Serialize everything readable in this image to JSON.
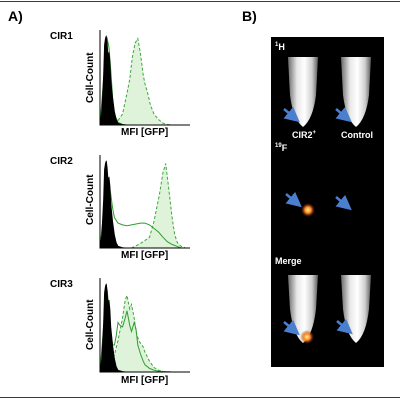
{
  "panel_a_label": "A)",
  "panel_b_label": "B)",
  "chart_data": [
    {
      "type": "area",
      "title": "CIR1",
      "xlabel": "MFI [GFP]",
      "ylabel": "Cell-Count",
      "series": [
        {
          "style": "filled-black",
          "x": [
            0,
            0.02,
            0.04,
            0.05,
            0.06,
            0.07,
            0.08,
            0.09,
            0.1,
            0.11,
            0.12,
            0.14,
            0.16,
            0.18,
            0.2,
            0.25,
            0.3
          ],
          "y": [
            0,
            0.15,
            0.55,
            0.88,
            0.95,
            0.98,
            0.9,
            0.75,
            0.8,
            0.7,
            0.5,
            0.3,
            0.15,
            0.06,
            0.02,
            0.005,
            0
          ]
        },
        {
          "style": "solid-green",
          "x": [
            0,
            0.04,
            0.06,
            0.08,
            0.1,
            0.12,
            0.14,
            0.16,
            0.2,
            0.25,
            0.3
          ],
          "y": [
            0,
            0.5,
            0.9,
            0.95,
            0.85,
            0.6,
            0.3,
            0.12,
            0.03,
            0.005,
            0
          ]
        },
        {
          "style": "dashed-green-filled",
          "x": [
            0.1,
            0.15,
            0.2,
            0.25,
            0.3,
            0.33,
            0.36,
            0.39,
            0.42,
            0.45,
            0.48,
            0.5,
            0.53,
            0.56,
            0.6,
            0.65,
            0.7,
            0.75,
            0.8
          ],
          "y": [
            0,
            0.03,
            0.05,
            0.12,
            0.35,
            0.5,
            0.75,
            0.9,
            0.95,
            0.78,
            0.55,
            0.45,
            0.35,
            0.22,
            0.12,
            0.06,
            0.02,
            0.005,
            0
          ]
        }
      ]
    },
    {
      "type": "area",
      "title": "CIR2",
      "xlabel": "MFI [GFP]",
      "ylabel": "Cell-Count",
      "series": [
        {
          "style": "filled-black",
          "x": [
            0,
            0.02,
            0.04,
            0.05,
            0.06,
            0.07,
            0.08,
            0.09,
            0.1,
            0.11,
            0.12,
            0.14,
            0.16,
            0.18,
            0.2,
            0.25,
            0.3
          ],
          "y": [
            0,
            0.15,
            0.55,
            0.88,
            0.95,
            0.98,
            0.9,
            0.75,
            0.8,
            0.7,
            0.5,
            0.3,
            0.15,
            0.06,
            0.02,
            0.005,
            0
          ]
        },
        {
          "style": "solid-green",
          "x": [
            0,
            0.04,
            0.06,
            0.08,
            0.1,
            0.12,
            0.14,
            0.16,
            0.2,
            0.25,
            0.3,
            0.35,
            0.4,
            0.45,
            0.5,
            0.55,
            0.6,
            0.65,
            0.7,
            0.75,
            0.8,
            0.85,
            0.9
          ],
          "y": [
            0,
            0.4,
            0.72,
            0.8,
            0.75,
            0.6,
            0.45,
            0.34,
            0.28,
            0.26,
            0.25,
            0.26,
            0.27,
            0.28,
            0.28,
            0.26,
            0.22,
            0.18,
            0.12,
            0.07,
            0.04,
            0.02,
            0
          ]
        },
        {
          "style": "dashed-green-filled",
          "x": [
            0.35,
            0.45,
            0.55,
            0.6,
            0.63,
            0.66,
            0.7,
            0.73,
            0.76,
            0.8,
            0.83,
            0.86,
            0.9,
            0.95
          ],
          "y": [
            0,
            0.05,
            0.12,
            0.3,
            0.45,
            0.6,
            0.85,
            0.95,
            0.7,
            0.35,
            0.15,
            0.06,
            0.02,
            0
          ]
        }
      ]
    },
    {
      "type": "area",
      "title": "CIR3",
      "xlabel": "MFI [GFP]",
      "ylabel": "Cell-Count",
      "series": [
        {
          "style": "filled-black",
          "x": [
            0,
            0.02,
            0.04,
            0.05,
            0.06,
            0.07,
            0.08,
            0.09,
            0.1,
            0.11,
            0.12,
            0.14,
            0.16,
            0.18,
            0.2,
            0.25,
            0.3
          ],
          "y": [
            0,
            0.15,
            0.55,
            0.88,
            0.95,
            0.98,
            0.9,
            0.75,
            0.8,
            0.7,
            0.5,
            0.3,
            0.15,
            0.06,
            0.02,
            0.005,
            0
          ]
        },
        {
          "style": "solid-green",
          "x": [
            0,
            0.04,
            0.06,
            0.08,
            0.1,
            0.12,
            0.14,
            0.16,
            0.18,
            0.2,
            0.22,
            0.25,
            0.28,
            0.3,
            0.33,
            0.35,
            0.38,
            0.4,
            0.42,
            0.45,
            0.48,
            0.5,
            0.55,
            0.6,
            0.65,
            0.7,
            0.8
          ],
          "y": [
            0,
            0.5,
            0.88,
            0.9,
            0.7,
            0.45,
            0.3,
            0.3,
            0.4,
            0.55,
            0.52,
            0.5,
            0.6,
            0.68,
            0.52,
            0.45,
            0.55,
            0.48,
            0.3,
            0.2,
            0.12,
            0.08,
            0.04,
            0.02,
            0.01,
            0.005,
            0
          ]
        },
        {
          "style": "dashed-green-filled",
          "x": [
            0.1,
            0.15,
            0.2,
            0.25,
            0.28,
            0.3,
            0.33,
            0.35,
            0.38,
            0.4,
            0.43,
            0.45,
            0.48,
            0.5,
            0.55,
            0.6,
            0.65,
            0.7,
            0.8
          ],
          "y": [
            0,
            0.15,
            0.35,
            0.6,
            0.8,
            0.85,
            0.7,
            0.75,
            0.6,
            0.45,
            0.35,
            0.32,
            0.28,
            0.22,
            0.12,
            0.05,
            0.02,
            0.005,
            0
          ]
        }
      ]
    }
  ],
  "mri": {
    "h_section": "H",
    "h_superscript": "1",
    "f_section": "F",
    "f_superscript": "19",
    "merge_section": "Merge",
    "left_tube_label": "CIR2",
    "left_tube_superscript": "+",
    "right_tube_label": "Control",
    "arrow_color": "#4a7fd0",
    "hotspot_color": "#ff7a1a"
  }
}
